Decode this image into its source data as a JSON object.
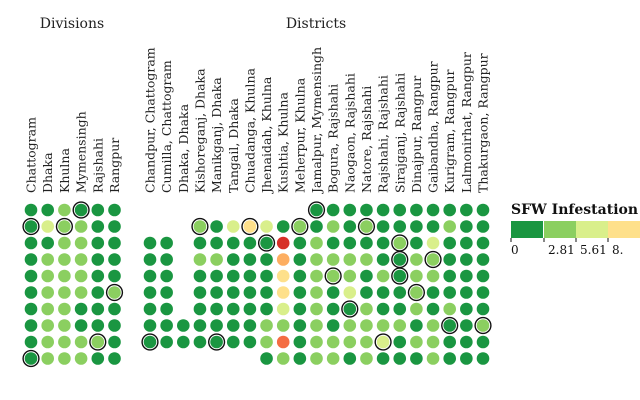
{
  "colors": [
    "#1a9641",
    "#8bcf60",
    "#d9ef8b",
    "#fee08b",
    "#fdae61",
    "#f46d43",
    "#d73027"
  ],
  "chart_data": {
    "type": "heatmap",
    "groups": [
      {
        "label": "Divisions",
        "columns": [
          "Chattogram",
          "Dhaka",
          "Khulna",
          "Mymensingh",
          "Rajshahi",
          "Rangpur"
        ]
      },
      {
        "label": "Districts",
        "columns": [
          "Chandpur, Chattogram",
          "Cumilla, Chattogram",
          "Dhaka, Dhaka",
          "Kishoreganj, Dhaka",
          "Manikganj, Dhaka",
          "Tangail, Dhaka",
          "Chuadanga, Khulna",
          "Jhenaidah, Khulna",
          "Kushtia, Khulna",
          "Meherpur, Khulna",
          "Jamalpur, Mymensingh",
          "Bogura, Rajshahi",
          "Naogaon, Rajshahi",
          "Natore, Rajshahi",
          "Rajshahi, Rajshahi",
          "Sirajganj, Rajshahi",
          "Dinajpur, Rangpur",
          "Gaibandha, Rangpur",
          "Kurigram, Rangpur",
          "Lalmonirhat, Rangpur",
          "Thakurgaon, Rangpur"
        ]
      }
    ],
    "legend": {
      "title": "SFW Infestation (",
      "ticks": [
        "0",
        "2.81",
        "5.61",
        "8."
      ]
    },
    "division_cells": [
      [
        0,
        0,
        1,
        0,
        0,
        0
      ],
      [
        0,
        2,
        1,
        1,
        0,
        0
      ],
      [
        0,
        0,
        1,
        1,
        0,
        0
      ],
      [
        0,
        1,
        1,
        1,
        0,
        0
      ],
      [
        0,
        1,
        1,
        1,
        0,
        0
      ],
      [
        0,
        1,
        1,
        1,
        0,
        1
      ],
      [
        0,
        1,
        1,
        0,
        0,
        0
      ],
      [
        0,
        1,
        1,
        0,
        0,
        0
      ],
      [
        0,
        1,
        1,
        1,
        1,
        0
      ],
      [
        0,
        1,
        1,
        1,
        0,
        0
      ]
    ],
    "division_outlines": [
      [
        0,
        3
      ],
      [
        1,
        0
      ],
      [
        1,
        2
      ],
      [
        5,
        5
      ],
      [
        8,
        4
      ],
      [
        9,
        0
      ]
    ],
    "district_cells": [
      [
        null,
        null,
        null,
        null,
        null,
        null,
        null,
        null,
        null,
        null,
        0,
        0,
        0,
        0,
        0,
        0,
        0,
        0,
        0,
        0,
        0
      ],
      [
        null,
        null,
        null,
        1,
        0,
        2,
        3,
        2,
        0,
        1,
        0,
        1,
        0,
        1,
        0,
        0,
        0,
        0,
        1,
        0,
        0
      ],
      [
        0,
        0,
        null,
        0,
        0,
        0,
        0,
        0,
        6,
        0,
        1,
        0,
        0,
        0,
        0,
        1,
        0,
        2,
        0,
        0,
        0
      ],
      [
        0,
        0,
        null,
        1,
        1,
        0,
        0,
        0,
        4,
        0,
        1,
        1,
        1,
        1,
        0,
        0,
        1,
        1,
        0,
        0,
        0
      ],
      [
        0,
        0,
        null,
        0,
        0,
        0,
        0,
        0,
        3,
        0,
        1,
        1,
        1,
        0,
        1,
        0,
        1,
        1,
        0,
        0,
        0
      ],
      [
        0,
        0,
        null,
        0,
        0,
        0,
        0,
        0,
        3,
        0,
        1,
        0,
        2,
        0,
        0,
        0,
        1,
        0,
        0,
        0,
        0
      ],
      [
        0,
        0,
        null,
        0,
        0,
        0,
        0,
        0,
        2,
        0,
        1,
        0,
        0,
        1,
        0,
        0,
        1,
        0,
        1,
        0,
        0
      ],
      [
        0,
        0,
        0,
        0,
        0,
        0,
        0,
        1,
        1,
        0,
        1,
        0,
        1,
        1,
        1,
        1,
        0,
        1,
        0,
        0,
        1
      ],
      [
        0,
        0,
        0,
        0,
        0,
        0,
        0,
        1,
        5,
        0,
        1,
        1,
        1,
        1,
        2,
        0,
        1,
        1,
        0,
        0,
        0
      ],
      [
        null,
        null,
        null,
        null,
        null,
        null,
        null,
        0,
        1,
        0,
        1,
        1,
        0,
        1,
        0,
        0,
        0,
        1,
        0,
        0,
        0
      ]
    ],
    "district_outlines": [
      [
        1,
        3
      ],
      [
        1,
        6
      ],
      [
        1,
        9
      ],
      [
        0,
        10
      ],
      [
        1,
        13
      ],
      [
        2,
        7
      ],
      [
        2,
        15
      ],
      [
        3,
        15
      ],
      [
        3,
        17
      ],
      [
        4,
        11
      ],
      [
        4,
        15
      ],
      [
        5,
        16
      ],
      [
        6,
        12
      ],
      [
        7,
        18
      ],
      [
        7,
        20
      ],
      [
        8,
        0
      ],
      [
        8,
        4
      ],
      [
        8,
        14
      ],
      [
        9,
        1
      ]
    ]
  }
}
